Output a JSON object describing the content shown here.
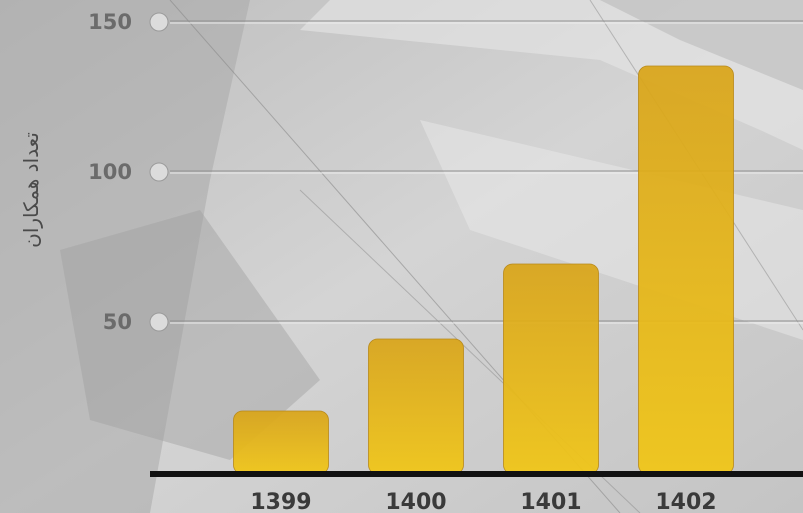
{
  "chart_data": {
    "type": "bar",
    "title": "",
    "xlabel": "",
    "ylabel": "تعداد همکاران",
    "categories": [
      "1399",
      "1400",
      "1401",
      "1402"
    ],
    "values": [
      20,
      44,
      69,
      135
    ],
    "ylim": [
      0,
      160
    ],
    "yticks": [
      50,
      100,
      150
    ],
    "grid": true,
    "legend": "none",
    "colors": {
      "bar_top": "#d9a417",
      "bar_bottom": "#f0c619",
      "grid": "#9a9a9a",
      "axis": "#111111"
    }
  }
}
